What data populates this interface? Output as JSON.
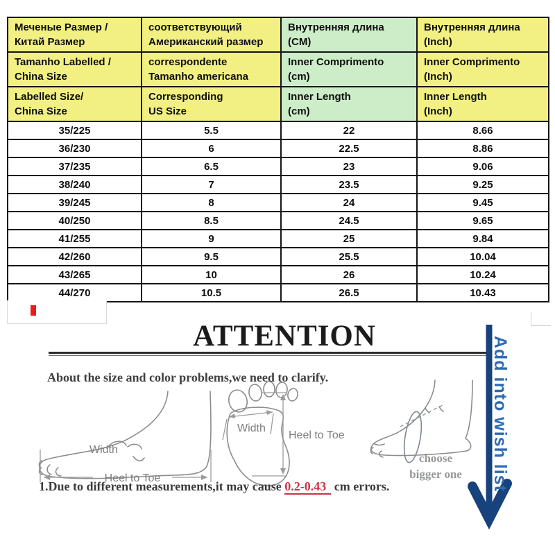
{
  "size_table": {
    "column_backgrounds": [
      "#f2f083",
      "#f2f083",
      "#cdedc9",
      "#f2f083"
    ],
    "header_rows": [
      [
        [
          "Меченые Размер /",
          "Китай Размер"
        ],
        [
          "соответствующий",
          "Американский размер"
        ],
        [
          "Внутренняя длина",
          "(CM)"
        ],
        [
          "Внутренняя длина",
          "(Inch)"
        ]
      ],
      [
        [
          "Tamanho Labelled /",
          "China Size"
        ],
        [
          "correspondente",
          "Tamanho americana"
        ],
        [
          "Inner Comprimento",
          "(cm)"
        ],
        [
          "Inner Comprimento",
          "(Inch)"
        ]
      ],
      [
        [
          "Labelled Size/",
          "China Size"
        ],
        [
          "Corresponding",
          "US Size"
        ],
        [
          "Inner Length",
          "(cm)"
        ],
        [
          "Inner Length",
          "(Inch)"
        ]
      ]
    ],
    "rows": [
      [
        "35/225",
        "5.5",
        "22",
        "8.66"
      ],
      [
        "36/230",
        "6",
        "22.5",
        "8.86"
      ],
      [
        "37/235",
        "6.5",
        "23",
        "9.06"
      ],
      [
        "38/240",
        "7",
        "23.5",
        "9.25"
      ],
      [
        "39/245",
        "8",
        "24",
        "9.45"
      ],
      [
        "40/250",
        "8.5",
        "24.5",
        "9.65"
      ],
      [
        "41/255",
        "9",
        "25",
        "9.84"
      ],
      [
        "42/260",
        "9.5",
        "25.5",
        "10.04"
      ],
      [
        "43/265",
        "10",
        "26",
        "10.24"
      ],
      [
        "44/270",
        "10.5",
        "26.5",
        "10.43"
      ]
    ]
  },
  "attention": {
    "title": "ATTENTION",
    "clarify_text": "About the size and color problems,we need to clarify.",
    "note_prefix": "1.Due to different measurements,it may cause ",
    "note_highlight": "0.2-0.43",
    "note_suffix": " cm errors."
  },
  "diagrams": {
    "side_foot": {
      "width_label": "Width",
      "length_label": "Heel to Toe"
    },
    "footprint": {
      "width_label": "Width",
      "length_label": "Heel to Toe"
    },
    "girth_foot": {
      "hint_line1": "choose",
      "hint_line2": "bigger one"
    }
  },
  "wishlist": {
    "label": "Add into wish list"
  },
  "colors": {
    "header_yellow": "#f2f083",
    "header_green": "#cdedc9",
    "table_border": "#141414",
    "navy_arrow": "#17427c",
    "wishlist_blue": "#2e6bb2",
    "note_red": "#cf3247",
    "red_mark": "#ee1a1a",
    "sketch_gray": "#8c8c8c"
  }
}
